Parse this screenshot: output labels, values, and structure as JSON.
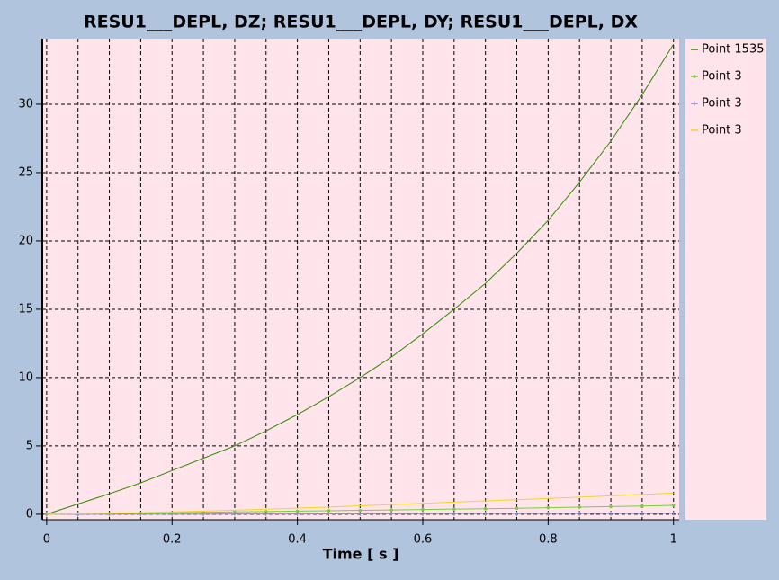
{
  "chart_data": {
    "type": "line",
    "title": "RESU1___DEPL, DZ; RESU1___DEPL, DY; RESU1___DEPL, DX",
    "x_label": "Time [ s ]",
    "x": [
      0,
      0.05,
      0.1,
      0.15,
      0.2,
      0.25,
      0.3,
      0.35,
      0.4,
      0.45,
      0.5,
      0.55,
      0.6,
      0.65,
      0.7,
      0.75,
      0.8,
      0.85,
      0.9,
      0.95,
      1
    ],
    "series": [
      {
        "name": "Point 1535",
        "color": "#2e8b00",
        "marker": "none",
        "values": [
          0,
          0.75,
          1.5,
          2.3,
          3.2,
          4.1,
          5.0,
          6.1,
          7.3,
          8.6,
          10.0,
          11.5,
          13.2,
          15.0,
          16.9,
          19.1,
          21.5,
          24.3,
          27.3,
          30.7,
          34.4
        ]
      },
      {
        "name": "Point 3",
        "color": "#7ccd3c",
        "marker": "dot",
        "values": [
          0,
          0.02,
          0.05,
          0.08,
          0.11,
          0.14,
          0.17,
          0.2,
          0.23,
          0.26,
          0.29,
          0.32,
          0.35,
          0.38,
          0.41,
          0.44,
          0.48,
          0.52,
          0.56,
          0.6,
          0.65
        ]
      },
      {
        "name": "Point 3",
        "color": "#8a8acb",
        "marker": "plus",
        "values": [
          0,
          0.003,
          0.006,
          0.009,
          0.012,
          0.015,
          0.018,
          0.021,
          0.024,
          0.027,
          0.03,
          0.033,
          0.036,
          0.039,
          0.042,
          0.045,
          0.048,
          0.051,
          0.054,
          0.057,
          0.06
        ]
      },
      {
        "name": "Point 3",
        "color": "#f5d327",
        "marker": "none",
        "values": [
          0,
          0.03,
          0.07,
          0.12,
          0.17,
          0.23,
          0.3,
          0.37,
          0.45,
          0.53,
          0.62,
          0.71,
          0.8,
          0.89,
          0.98,
          1.07,
          1.16,
          1.25,
          1.35,
          1.45,
          1.55
        ]
      }
    ],
    "xlim": [
      -0.007,
      1.009
    ],
    "ylim": [
      -0.4,
      34.8
    ],
    "xticks": [
      0,
      0.2,
      0.4,
      0.6,
      0.8,
      1
    ],
    "yticks": [
      0,
      5,
      10,
      15,
      20,
      25,
      30
    ],
    "grid": true,
    "legend": "right"
  }
}
